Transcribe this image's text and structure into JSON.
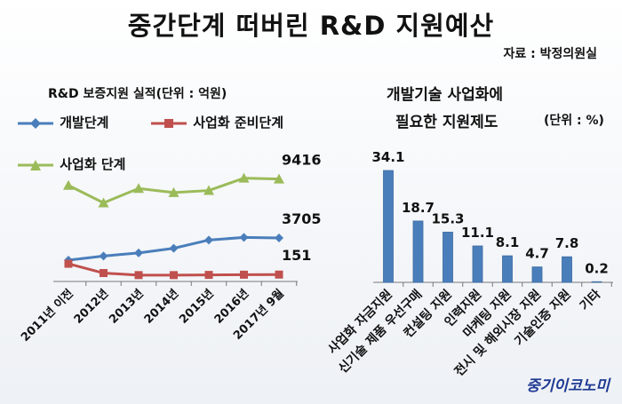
{
  "title": "중간단계 떠버린 R&D 지원예산",
  "source": "자료 : 박정의원실",
  "brand": "중기이코노미",
  "chart_data": [
    {
      "type": "line",
      "title": "R&D 보증지원 실적(단위 : 억원)",
      "categories": [
        "2011년 이전",
        "2012년",
        "2013년",
        "2014년",
        "2015년",
        "2016년",
        "2017년 9월"
      ],
      "series": [
        {
          "name": "개발단계",
          "color": "#4a7ebb",
          "marker": "diamond",
          "values": [
            1550,
            1950,
            2250,
            2700,
            3500,
            3750,
            3705
          ]
        },
        {
          "name": "사업화 준비단계",
          "color": "#c0504d",
          "marker": "square",
          "values": [
            1200,
            300,
            100,
            100,
            120,
            140,
            151
          ]
        },
        {
          "name": "사업화 단계",
          "color": "#9bbb59",
          "marker": "triangle",
          "values": [
            8800,
            7100,
            8500,
            8100,
            8300,
            9500,
            9416
          ]
        }
      ],
      "data_labels": [
        {
          "series": 2,
          "index": 6,
          "text": "9416"
        },
        {
          "series": 0,
          "index": 6,
          "text": "3705"
        },
        {
          "series": 1,
          "index": 6,
          "text": "151"
        }
      ],
      "ylim": [
        0,
        10500
      ],
      "grid": false,
      "legend": "top-left"
    },
    {
      "type": "bar",
      "title": "개발기술 사업화에 필요한 지원제도",
      "unit": "(단위 : %)",
      "categories": [
        "사업화 자금지원",
        "신기술 제품 우선구매",
        "컨설팅 지원",
        "인력지원",
        "마케팅 지원",
        "전시 및 해외시장 지원",
        "기술인증 지원",
        "기타"
      ],
      "values": [
        34.1,
        18.7,
        15.3,
        11.1,
        8.1,
        4.7,
        7.8,
        0.2
      ],
      "value_labels": [
        "34.1",
        "18.7",
        "15.3",
        "11.1",
        "8.1",
        "4.7",
        "7.8",
        "0.2"
      ],
      "color": "#4a7ebb",
      "ylim": [
        0,
        36
      ],
      "grid": false
    }
  ]
}
